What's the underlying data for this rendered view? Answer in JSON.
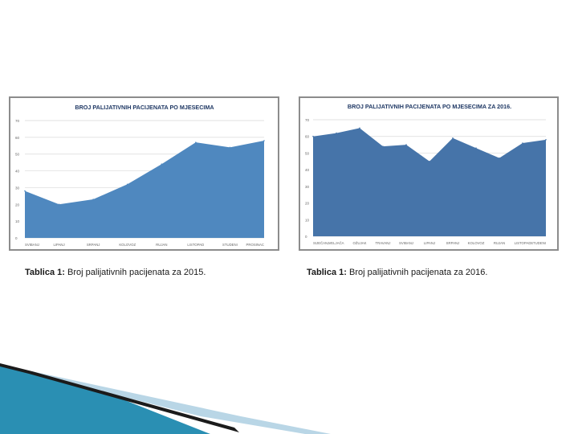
{
  "colors": {
    "series_2015": "#4f88bf",
    "series_2016": "#4674a9",
    "gridline": "#d9d9d9",
    "title_text": "#1f3864",
    "axis_text": "#666666",
    "decor_teal": "#2a8fb3",
    "decor_dark": "#1b1b1b"
  },
  "chart_data": [
    {
      "type": "area",
      "title": "BROJ PALIJATIVNIH PACIJENATA PO MJESECIMA",
      "categories": [
        "SVIBANJ",
        "LIPANJ",
        "SRPANJ",
        "KOLOVOZ",
        "RUJAN",
        "LISTOPAD",
        "STUDENI",
        "PROSINAC"
      ],
      "series": [
        {
          "values": [
            28,
            20,
            23,
            32,
            44,
            57,
            54,
            58
          ]
        }
      ],
      "ylim": [
        0,
        70
      ],
      "yticks": [
        "0",
        "10",
        "20",
        "30",
        "40",
        "50",
        "60",
        "70"
      ],
      "grid": true
    },
    {
      "type": "area",
      "title": "BROJ PALIJATIVNIH PACIJENATA PO MJESECIMA ZA 2016.",
      "categories": [
        "SIJEČANJ",
        "VELJAČA",
        "OŽUJAK",
        "TRAVANJ",
        "SVIBANJ",
        "LIPANJ",
        "SRPANJ",
        "KOLOVOZ",
        "RUJAN",
        "LISTOPAD",
        "STUDENI"
      ],
      "series": [
        {
          "values": [
            60,
            62,
            65,
            54,
            55,
            45,
            59,
            53,
            47,
            56,
            58
          ]
        }
      ],
      "ylim": [
        0,
        70
      ],
      "yticks": [
        "0",
        "10",
        "20",
        "30",
        "40",
        "50",
        "60",
        "70"
      ],
      "grid": true
    }
  ],
  "captions": [
    {
      "label": "Tablica 1:",
      "text": " Broj palijativnih pacijenata za 2015."
    },
    {
      "label": "Tablica 1:",
      "text": " Broj palijativnih pacijenata za 2016."
    }
  ]
}
